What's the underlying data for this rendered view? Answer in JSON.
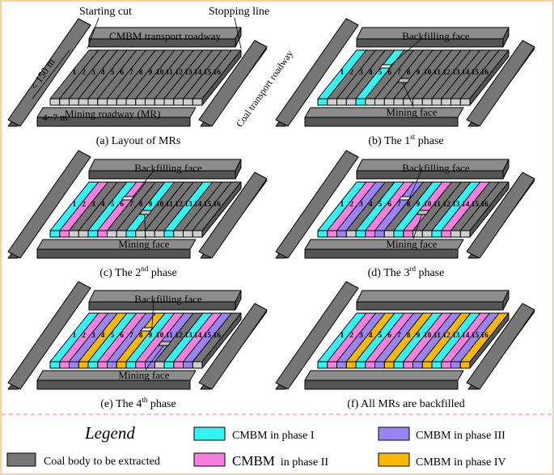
{
  "colors": {
    "coal": "#767676",
    "coal_top": "#8c8c8c",
    "coal_side": "#555555",
    "phase1": "#33f3f3",
    "phase2": "#f77fe0",
    "phase3": "#9a84f2",
    "phase4": "#f9b800",
    "frame": "#f6b65a",
    "divider": "#e868c8",
    "bottom_strip": "#cfcfcf"
  },
  "numbers": [
    "1",
    "2",
    "3",
    "4",
    "5",
    "6",
    "7",
    "8",
    "9",
    "10",
    "11",
    "12",
    "13",
    "14",
    "15",
    "16"
  ],
  "annotations": {
    "starting_cut": "Starting cut",
    "stopping_line": "Stopping line",
    "transport_roadway": "CMBM transport roadway",
    "coal_transport_roadway": "Coal transport roadway",
    "length": "< 150 m",
    "width": "4~7 m",
    "mining_roadway": "Mining roadway (MR)",
    "backfilling_face": "Backfilling face",
    "mining_face": "Mining face"
  },
  "panels": [
    {
      "id": "a",
      "caption_pre": "(a) Layout of MRs",
      "sup": "",
      "caption_post": "",
      "phases": [
        0,
        0,
        0,
        0,
        0,
        0,
        0,
        0,
        0,
        0,
        0,
        0,
        0,
        0,
        0,
        0
      ]
    },
    {
      "id": "b",
      "caption_pre": "(b) The 1",
      "sup": "st",
      "caption_post": " phase",
      "phases": [
        1,
        0,
        0,
        0,
        1,
        0,
        0,
        0,
        0,
        0,
        0,
        0,
        0,
        0,
        0,
        0
      ]
    },
    {
      "id": "c",
      "caption_pre": "(c) The 2",
      "sup": "nd",
      "caption_post": " phase",
      "phases": [
        1,
        2,
        0,
        0,
        1,
        2,
        0,
        0,
        1,
        0,
        0,
        0,
        1,
        0,
        0,
        0
      ]
    },
    {
      "id": "d",
      "caption_pre": "(d) The 3",
      "sup": "rd",
      "caption_post": " phase",
      "phases": [
        1,
        2,
        3,
        0,
        1,
        2,
        3,
        0,
        1,
        2,
        0,
        0,
        1,
        2,
        0,
        0
      ]
    },
    {
      "id": "e",
      "caption_pre": "(e) The 4",
      "sup": "th",
      "caption_post": " phase",
      "phases": [
        1,
        2,
        3,
        4,
        1,
        2,
        3,
        4,
        1,
        2,
        3,
        0,
        1,
        2,
        3,
        0
      ]
    },
    {
      "id": "f",
      "caption_pre": "(f) All MRs are backfilled",
      "sup": "",
      "caption_post": "",
      "phases": [
        1,
        2,
        3,
        4,
        1,
        2,
        3,
        4,
        1,
        2,
        3,
        4,
        1,
        2,
        3,
        4
      ]
    }
  ],
  "legend": {
    "title": "Legend",
    "coal": "Coal body to be extracted",
    "p1": "CMBM in phase I",
    "p2": "CMBM",
    "p2_suffix": "in phase II",
    "p3": "CMBM  in phase III",
    "p4": "CMBM  in phase IV"
  }
}
